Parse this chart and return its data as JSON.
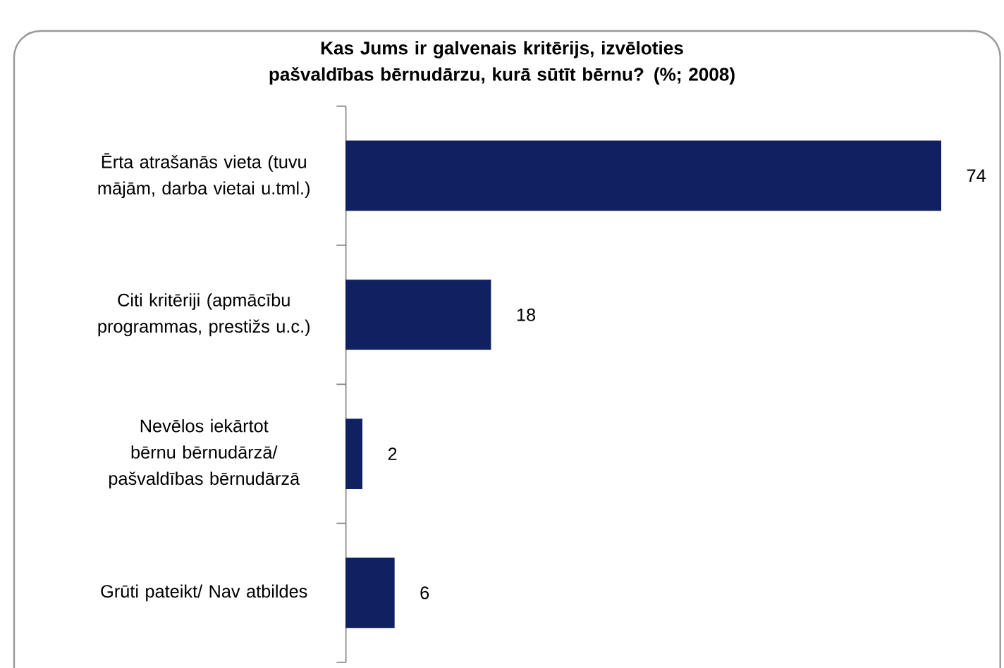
{
  "chart_data": {
    "type": "bar",
    "orientation": "horizontal",
    "title": "Kas Jums ir galvenais kritērijs, izvēloties pašvaldības bērnudārzu, kurā sūtīt bērnu? (%; 2008)",
    "categories": [
      "Ērta atrašanās vieta (tuvu mājām, darba vietai u.tml.)",
      "Citi kritēriji (apmācību programmas, prestižs u.c.)",
      "Nevēlos iekārtot bērnu bērnudārzā/ pašvaldības bērnudārzā",
      "Grūti pateikt/ Nav atbildes"
    ],
    "values": [
      74,
      18,
      2,
      6
    ],
    "color": "#0f2161",
    "data_labels": true
  }
}
